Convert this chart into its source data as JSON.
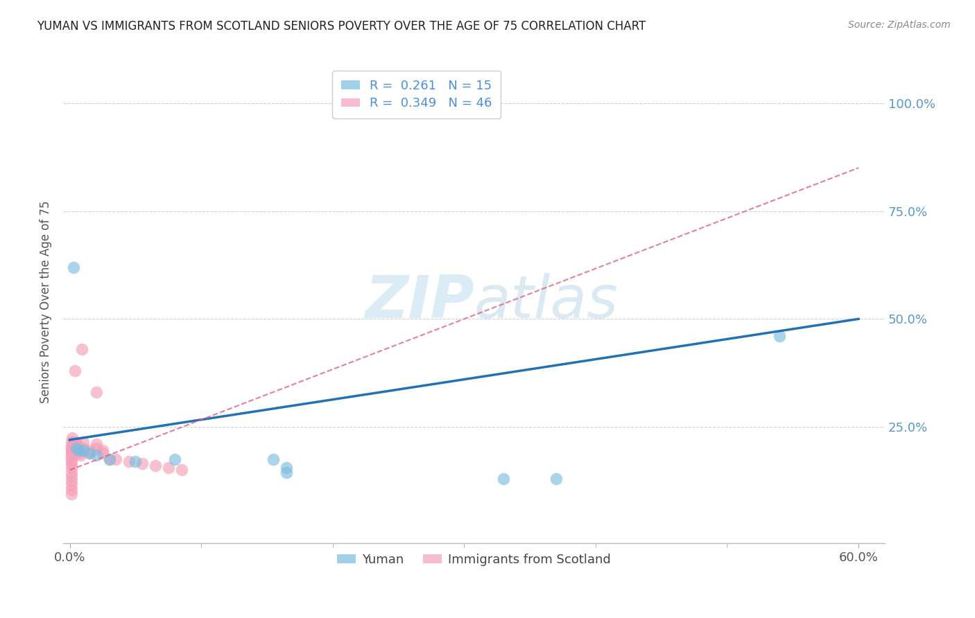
{
  "title": "YUMAN VS IMMIGRANTS FROM SCOTLAND SENIORS POVERTY OVER THE AGE OF 75 CORRELATION CHART",
  "source": "Source: ZipAtlas.com",
  "ylabel": "Seniors Poverty Over the Age of 75",
  "xlim": [
    -0.005,
    0.62
  ],
  "ylim": [
    -0.02,
    1.1
  ],
  "xtick_positions": [
    0.0,
    0.6
  ],
  "xtick_labels": [
    "0.0%",
    "60.0%"
  ],
  "ytick_positions": [
    0.25,
    0.5,
    0.75,
    1.0
  ],
  "ytick_labels": [
    "25.0%",
    "50.0%",
    "75.0%",
    "100.0%"
  ],
  "yuman_points": [
    [
      0.003,
      0.62
    ],
    [
      0.005,
      0.2
    ],
    [
      0.007,
      0.195
    ],
    [
      0.01,
      0.195
    ],
    [
      0.015,
      0.19
    ],
    [
      0.02,
      0.185
    ],
    [
      0.03,
      0.175
    ],
    [
      0.05,
      0.17
    ],
    [
      0.08,
      0.175
    ],
    [
      0.155,
      0.175
    ],
    [
      0.165,
      0.155
    ],
    [
      0.165,
      0.145
    ],
    [
      0.33,
      0.13
    ],
    [
      0.37,
      0.13
    ],
    [
      0.54,
      0.46
    ]
  ],
  "scotland_points": [
    [
      0.001,
      0.215
    ],
    [
      0.001,
      0.205
    ],
    [
      0.001,
      0.2
    ],
    [
      0.001,
      0.195
    ],
    [
      0.001,
      0.19
    ],
    [
      0.001,
      0.185
    ],
    [
      0.001,
      0.178
    ],
    [
      0.001,
      0.172
    ],
    [
      0.001,
      0.165
    ],
    [
      0.001,
      0.155
    ],
    [
      0.001,
      0.145
    ],
    [
      0.001,
      0.135
    ],
    [
      0.001,
      0.125
    ],
    [
      0.001,
      0.115
    ],
    [
      0.001,
      0.105
    ],
    [
      0.001,
      0.095
    ],
    [
      0.002,
      0.225
    ],
    [
      0.003,
      0.215
    ],
    [
      0.003,
      0.21
    ],
    [
      0.003,
      0.205
    ],
    [
      0.004,
      0.195
    ],
    [
      0.004,
      0.38
    ],
    [
      0.005,
      0.215
    ],
    [
      0.005,
      0.21
    ],
    [
      0.006,
      0.205
    ],
    [
      0.006,
      0.2
    ],
    [
      0.007,
      0.195
    ],
    [
      0.007,
      0.19
    ],
    [
      0.008,
      0.185
    ],
    [
      0.009,
      0.43
    ],
    [
      0.01,
      0.215
    ],
    [
      0.01,
      0.2
    ],
    [
      0.015,
      0.195
    ],
    [
      0.015,
      0.19
    ],
    [
      0.02,
      0.33
    ],
    [
      0.02,
      0.21
    ],
    [
      0.02,
      0.2
    ],
    [
      0.025,
      0.195
    ],
    [
      0.025,
      0.19
    ],
    [
      0.03,
      0.175
    ],
    [
      0.035,
      0.175
    ],
    [
      0.045,
      0.17
    ],
    [
      0.055,
      0.165
    ],
    [
      0.065,
      0.16
    ],
    [
      0.075,
      0.155
    ],
    [
      0.085,
      0.15
    ]
  ],
  "yuman_line_x": [
    0.0,
    0.6
  ],
  "yuman_line_y": [
    0.22,
    0.5
  ],
  "scotland_line_x": [
    0.0,
    0.6
  ],
  "scotland_line_y": [
    0.15,
    0.85
  ],
  "yuman_color": "#7bbde0",
  "scotland_color": "#f5a0b8",
  "yuman_line_color": "#2171b5",
  "scotland_line_color": "#e06080",
  "scotland_line_style": "--",
  "background_color": "#ffffff",
  "grid_color": "#d0d0d0"
}
